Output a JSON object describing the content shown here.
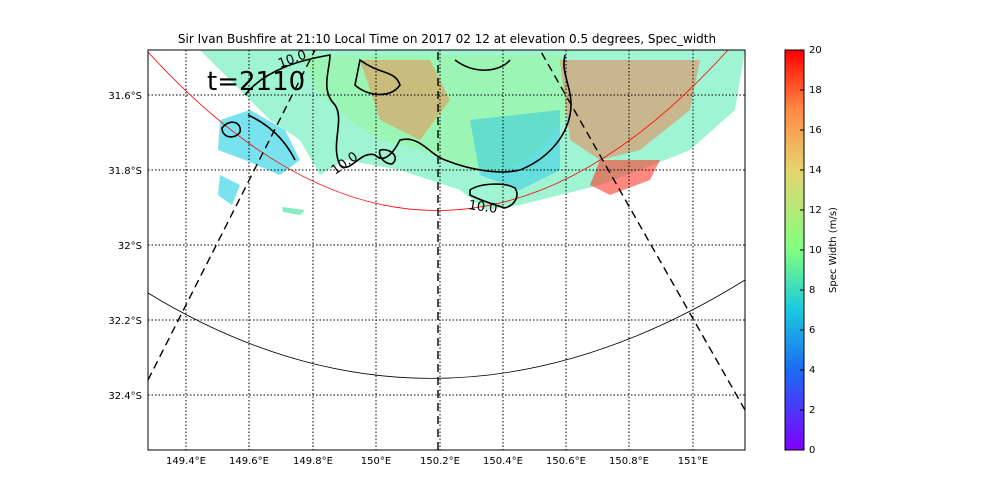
{
  "figure": {
    "title": "Sir Ivan Bushfire at 21:10 Local Time on 2017 02 12 at elevation 0.5 degrees, Spec_width",
    "time_label": "t=2110",
    "contour_label": "10.0",
    "x_ticks": [
      "149.4°E",
      "149.6°E",
      "149.8°E",
      "150°E",
      "150.2°E",
      "150.4°E",
      "150.6°E",
      "150.8°E",
      "151°E"
    ],
    "y_ticks": [
      "31.6°S",
      "31.8°S",
      "32°S",
      "32.2°S",
      "32.4°S"
    ],
    "colorbar": {
      "label": "Spec Width (m/s)",
      "ticks": [
        "0",
        "2",
        "4",
        "6",
        "8",
        "10",
        "12",
        "14",
        "16",
        "18",
        "20"
      ],
      "min": 0,
      "max": 20,
      "colormap": "rainbow"
    },
    "colors": {
      "range_ring_inner": "#ff0000",
      "range_ring_outer": "#000000",
      "contour": "#000000"
    }
  },
  "chart_data": {
    "type": "heatmap",
    "title": "Sir Ivan Bushfire at 21:10 Local Time on 2017 02 12 at elevation 0.5 degrees, Spec_width",
    "x_axis": {
      "ticks": [
        149.4,
        149.6,
        149.8,
        150.0,
        150.2,
        150.4,
        150.6,
        150.8,
        151.0
      ],
      "range": [
        149.28,
        151.16
      ]
    },
    "y_axis": {
      "ticks": [
        -31.6,
        -31.8,
        -32.0,
        -32.2,
        -32.4
      ],
      "range": [
        -32.54,
        -31.48
      ]
    },
    "colorbar_range": [
      0,
      20
    ],
    "colorbar_label": "Spec Width (m/s)",
    "grid": true,
    "contour_level": 10.0
  }
}
